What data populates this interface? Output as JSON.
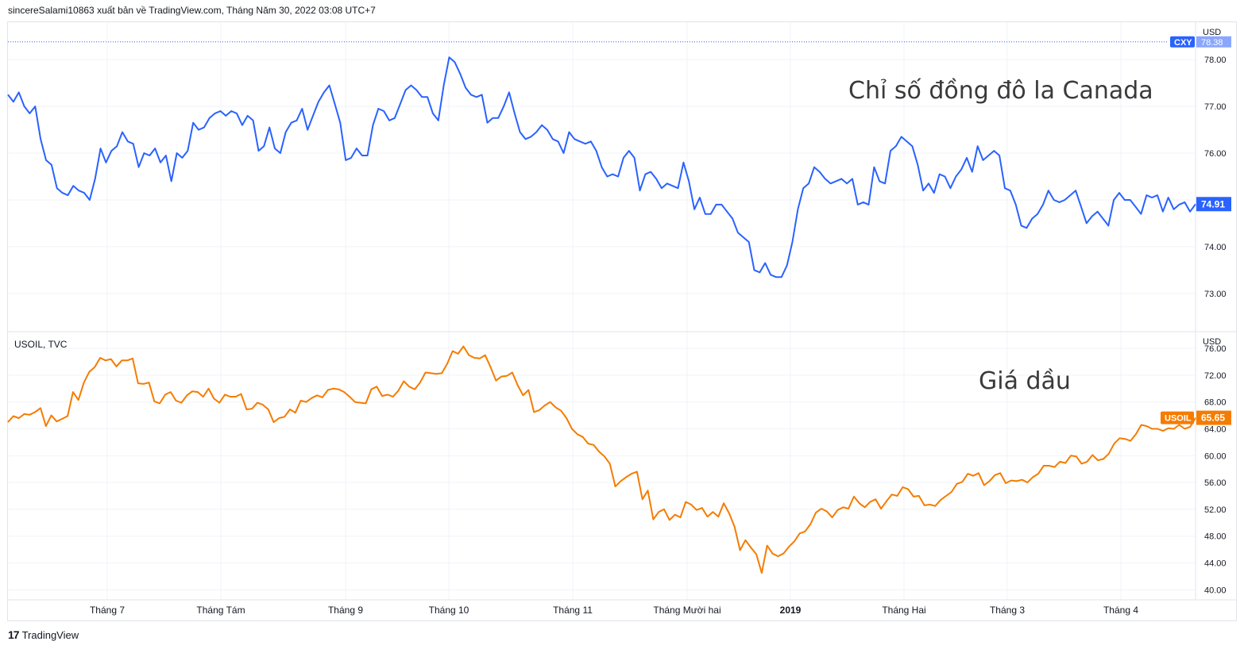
{
  "header": {
    "publish_text": "sincereSalami10863 xuất bản về TradingView.com, Tháng Năm 30, 2022 03:08 UTC+7"
  },
  "footer": {
    "brand": "TradingView"
  },
  "colors": {
    "cad": "#2962ff",
    "oil": "#f57c00",
    "grid": "#f0f3fa",
    "axis_text": "#131722"
  },
  "chart_data": [
    {
      "type": "line",
      "pane": "top",
      "symbol": "CXY",
      "currency": "USD",
      "annotation": "Chỉ số đồng đô la Canada",
      "last_value": "74.91",
      "top_tag_value": "78.38",
      "ylim": [
        72.2,
        78.8
      ],
      "yticks": [
        "78.00",
        "77.00",
        "76.00",
        "75.00",
        "74.00",
        "73.00"
      ],
      "values": [
        77.25,
        77.1,
        77.3,
        77.0,
        76.85,
        77.0,
        76.3,
        75.85,
        75.75,
        75.25,
        75.15,
        75.1,
        75.3,
        75.2,
        75.15,
        75.0,
        75.45,
        76.1,
        75.8,
        76.05,
        76.15,
        76.45,
        76.25,
        76.2,
        75.7,
        76.0,
        75.95,
        76.1,
        75.8,
        75.95,
        75.4,
        76.0,
        75.9,
        76.05,
        76.65,
        76.5,
        76.55,
        76.75,
        76.85,
        76.9,
        76.8,
        76.9,
        76.85,
        76.6,
        76.8,
        76.7,
        76.05,
        76.15,
        76.55,
        76.1,
        76.0,
        76.45,
        76.65,
        76.7,
        76.95,
        76.5,
        76.8,
        77.1,
        77.3,
        77.45,
        77.05,
        76.65,
        75.85,
        75.9,
        76.1,
        75.95,
        75.95,
        76.6,
        76.95,
        76.9,
        76.7,
        76.75,
        77.05,
        77.35,
        77.45,
        77.35,
        77.2,
        77.2,
        76.85,
        76.7,
        77.45,
        78.05,
        77.95,
        77.7,
        77.4,
        77.25,
        77.2,
        77.25,
        76.65,
        76.75,
        76.75,
        77.0,
        77.3,
        76.85,
        76.45,
        76.3,
        76.35,
        76.45,
        76.6,
        76.5,
        76.3,
        76.25,
        76.0,
        76.45,
        76.3,
        76.25,
        76.2,
        76.25,
        76.05,
        75.7,
        75.5,
        75.55,
        75.5,
        75.9,
        76.05,
        75.9,
        75.2,
        75.55,
        75.6,
        75.45,
        75.25,
        75.35,
        75.3,
        75.25,
        75.8,
        75.4,
        74.8,
        75.05,
        74.7,
        74.7,
        74.9,
        74.9,
        74.75,
        74.6,
        74.3,
        74.2,
        74.1,
        73.5,
        73.45,
        73.65,
        73.4,
        73.35,
        73.35,
        73.6,
        74.1,
        74.8,
        75.25,
        75.35,
        75.7,
        75.6,
        75.45,
        75.35,
        75.4,
        75.45,
        75.35,
        75.45,
        74.9,
        74.95,
        74.9,
        75.7,
        75.4,
        75.35,
        76.05,
        76.15,
        76.35,
        76.25,
        76.15,
        75.75,
        75.2,
        75.35,
        75.15,
        75.55,
        75.5,
        75.25,
        75.5,
        75.65,
        75.9,
        75.6,
        76.15,
        75.85,
        75.95,
        76.05,
        75.95,
        75.25,
        75.2,
        74.9,
        74.45,
        74.4,
        74.6,
        74.7,
        74.9,
        75.2,
        75.0,
        74.95,
        75.0,
        75.1,
        75.2,
        74.85,
        74.5,
        74.65,
        74.75,
        74.6,
        74.45,
        75.0,
        75.15,
        75.0,
        75.0,
        74.85,
        74.7,
        75.1,
        75.05,
        75.1,
        74.75,
        75.05,
        74.8,
        74.9,
        74.95,
        74.75,
        74.91
      ]
    },
    {
      "type": "line",
      "pane": "bottom",
      "symbol": "USOIL",
      "source_label": "USOIL, TVC",
      "currency": "USD",
      "annotation": "Giá dầu",
      "last_value": "65.65",
      "ylim": [
        38.5,
        78.5
      ],
      "yticks": [
        "76.00",
        "72.00",
        "68.00",
        "64.00",
        "60.00",
        "56.00",
        "52.00",
        "48.00",
        "44.00",
        "40.00"
      ],
      "x_ticks": [
        "Tháng 7",
        "Tháng Tám",
        "Tháng 9",
        "Tháng 10",
        "Tháng 11",
        "Tháng Mười hai",
        "2019",
        "Tháng Hai",
        "Tháng 3",
        "Tháng 4"
      ],
      "values": [
        65.0,
        65.9,
        65.6,
        66.2,
        66.1,
        66.5,
        67.1,
        64.4,
        66.0,
        65.1,
        65.5,
        65.9,
        69.5,
        68.3,
        70.9,
        72.5,
        73.2,
        74.6,
        74.2,
        74.4,
        73.3,
        74.2,
        74.2,
        74.5,
        70.8,
        70.7,
        70.9,
        68.1,
        67.8,
        69.1,
        69.5,
        68.2,
        67.9,
        69.0,
        69.6,
        69.5,
        68.8,
        70.0,
        68.5,
        67.9,
        69.1,
        68.8,
        68.8,
        69.2,
        66.9,
        67.0,
        67.9,
        67.6,
        66.9,
        65.0,
        65.6,
        65.8,
        66.9,
        66.4,
        68.2,
        68.0,
        68.6,
        69.0,
        68.7,
        69.8,
        70.0,
        69.9,
        69.5,
        68.8,
        68.0,
        67.9,
        67.8,
        69.9,
        70.3,
        68.9,
        69.1,
        68.8,
        69.7,
        71.1,
        70.3,
        69.9,
        70.9,
        72.4,
        72.3,
        72.2,
        72.3,
        73.7,
        75.6,
        75.2,
        76.3,
        75.0,
        74.6,
        74.5,
        75.0,
        73.2,
        71.2,
        71.8,
        71.9,
        72.4,
        70.5,
        69.0,
        69.8,
        66.5,
        66.8,
        67.5,
        68.0,
        67.2,
        66.7,
        65.6,
        64.0,
        63.2,
        62.8,
        61.8,
        61.6,
        60.6,
        59.9,
        58.8,
        55.4,
        56.2,
        56.8,
        57.3,
        57.6,
        53.5,
        54.8,
        50.5,
        51.6,
        52.0,
        50.4,
        51.2,
        50.8,
        53.1,
        52.7,
        51.9,
        52.2,
        50.9,
        51.6,
        50.9,
        52.9,
        51.4,
        49.4,
        45.9,
        47.4,
        46.3,
        45.3,
        42.5,
        46.6,
        45.4,
        45.0,
        45.4,
        46.4,
        47.2,
        48.4,
        48.7,
        49.8,
        51.5,
        52.1,
        51.7,
        50.8,
        51.9,
        52.3,
        52.1,
        53.9,
        52.9,
        52.3,
        53.1,
        53.5,
        52.1,
        53.2,
        54.2,
        54.0,
        55.3,
        55.0,
        53.9,
        54.0,
        52.6,
        52.7,
        52.5,
        53.4,
        54.0,
        54.6,
        55.8,
        56.1,
        57.3,
        57.0,
        57.4,
        55.6,
        56.2,
        57.1,
        57.4,
        55.9,
        56.3,
        56.2,
        56.4,
        56.0,
        56.8,
        57.3,
        58.5,
        58.5,
        58.3,
        59.1,
        58.9,
        60.0,
        59.9,
        58.8,
        59.1,
        60.1,
        59.3,
        59.5,
        60.3,
        61.8,
        62.6,
        62.5,
        62.2,
        63.2,
        64.6,
        64.4,
        64.0,
        64.0,
        63.7,
        64.1,
        64.0,
        64.6,
        64.0,
        64.3,
        65.65
      ]
    }
  ]
}
